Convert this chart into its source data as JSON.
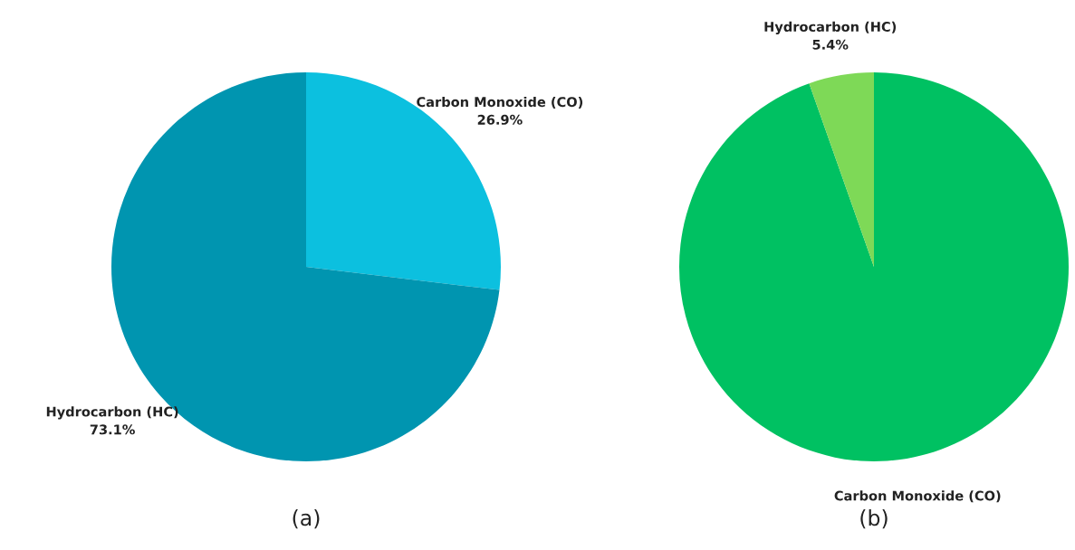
{
  "chart_data": [
    {
      "type": "pie",
      "title": "(a)",
      "categories": [
        "Carbon Monoxide (CO)",
        "Hydrocarbon (HC)"
      ],
      "values": [
        26.9,
        73.1
      ],
      "colors": [
        "#0cc0df",
        "#0095b0"
      ],
      "value_labels": [
        "26.9%",
        "73.1%"
      ]
    },
    {
      "type": "pie",
      "title": "(b)",
      "categories": [
        "Carbon Monoxide (CO)",
        "Hydrocarbon (HC)"
      ],
      "values": [
        94.6,
        5.4
      ],
      "colors": [
        "#00c162",
        "#7ed957"
      ],
      "value_labels": [
        null,
        "5.4%"
      ]
    }
  ]
}
